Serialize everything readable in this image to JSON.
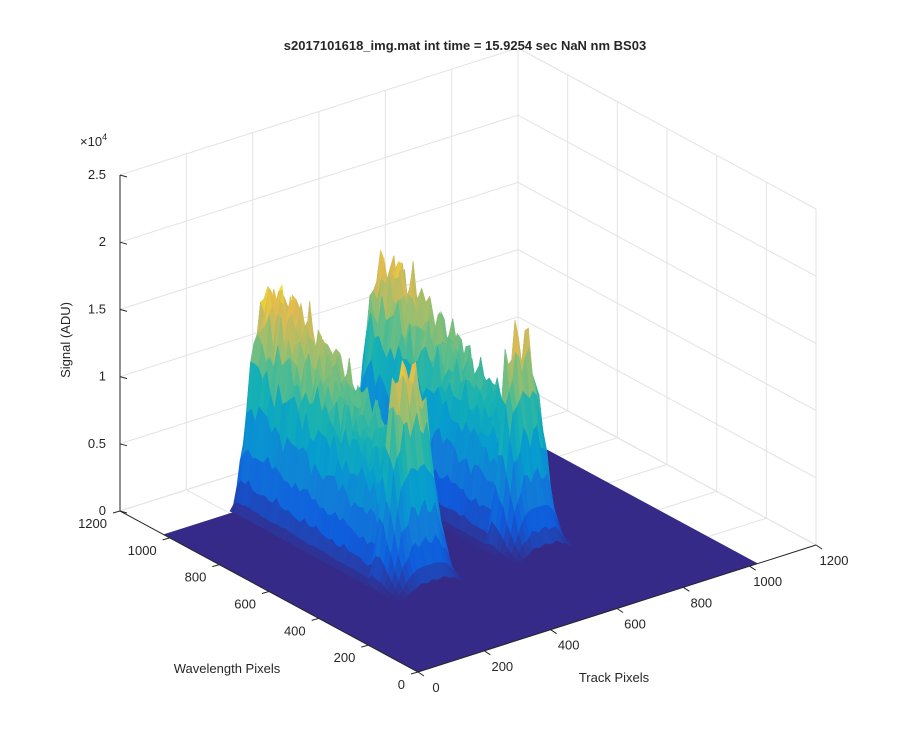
{
  "chart_data": {
    "type": "surface",
    "title": "s2017101618_img.mat int time = 15.9254 sec  NaN nm BS03",
    "xlabel": "Track Pixels",
    "ylabel": "Wavelength Pixels",
    "zlabel": "Signal (ADU)",
    "z_exponent_label": "×10",
    "z_exponent_power": "4",
    "x_ticks": [
      "0",
      "200",
      "400",
      "600",
      "800",
      "1000",
      "1200"
    ],
    "y_ticks": [
      "0",
      "200",
      "400",
      "600",
      "800",
      "1000",
      "1200"
    ],
    "z_ticks": [
      "0",
      "0.5",
      "1",
      "1.5",
      "2",
      "2.5"
    ],
    "xlim": [
      0,
      1200
    ],
    "ylim": [
      0,
      1200
    ],
    "zlim": [
      0,
      25000
    ],
    "grid": true,
    "colormap": "parula",
    "surface_extent": {
      "x": [
        0,
        1024
      ],
      "y": [
        0,
        1024
      ]
    },
    "peaks": [
      {
        "track_center": 310,
        "track_width": 75,
        "wavelength_range": [
          470,
          1000
        ],
        "peak_signal": 15500
      },
      {
        "track_center": 650,
        "track_width": 65,
        "wavelength_range": [
          470,
          1000
        ],
        "peak_signal": 15000
      }
    ]
  }
}
